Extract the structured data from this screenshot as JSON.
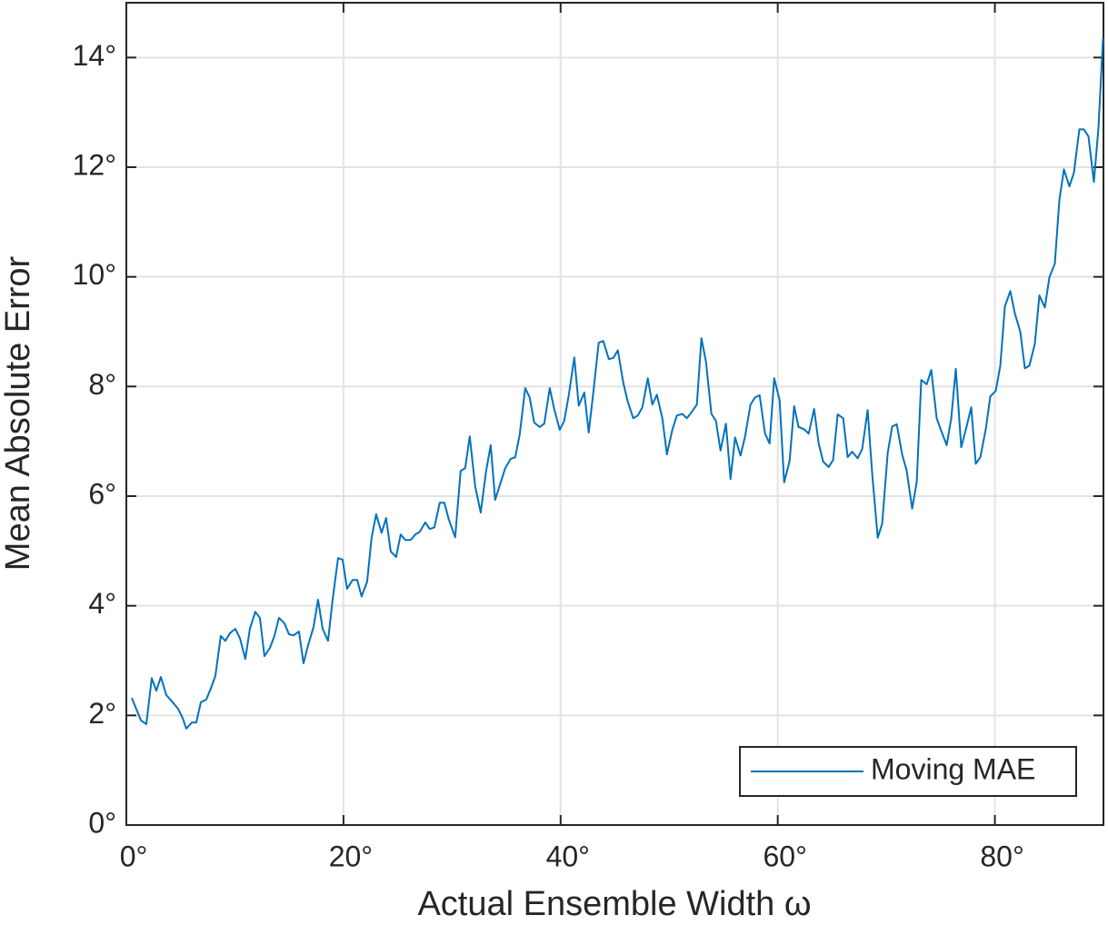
{
  "chart_data": {
    "type": "line",
    "xlabel": "Actual Ensemble Width ω",
    "ylabel": "Mean Absolute Error",
    "xlim": [
      0,
      90
    ],
    "ylim": [
      0,
      15
    ],
    "xticks": [
      {
        "value": 0,
        "label": "0°"
      },
      {
        "value": 20,
        "label": "20°"
      },
      {
        "value": 40,
        "label": "40°"
      },
      {
        "value": 60,
        "label": "60°"
      },
      {
        "value": 80,
        "label": "80°"
      }
    ],
    "yticks": [
      {
        "value": 0,
        "label": "0°"
      },
      {
        "value": 2,
        "label": "2°"
      },
      {
        "value": 4,
        "label": "4°"
      },
      {
        "value": 6,
        "label": "6°"
      },
      {
        "value": 8,
        "label": "8°"
      },
      {
        "value": 10,
        "label": "10°"
      },
      {
        "value": 12,
        "label": "12°"
      },
      {
        "value": 14,
        "label": "14°"
      }
    ],
    "grid": true,
    "legend": "southeast",
    "x": [
      0.5,
      1.34,
      1.84,
      2.34,
      2.76,
      3.18,
      3.68,
      4.27,
      4.77,
      5.19,
      5.52,
      6.03,
      6.44,
      6.86,
      7.36,
      7.78,
      8.2,
      8.7,
      9.12,
      9.54,
      10.04,
      10.46,
      10.96,
      11.38,
      11.88,
      12.3,
      12.72,
      13.22,
      13.64,
      14.06,
      14.56,
      14.98,
      15.4,
      15.9,
      16.32,
      16.74,
      17.24,
      17.66,
      18.08,
      18.58,
      19.0,
      19.5,
      19.92,
      20.33,
      20.84,
      21.26,
      21.67,
      22.18,
      22.59,
      23.01,
      23.51,
      23.93,
      24.35,
      24.85,
      25.27,
      25.69,
      26.19,
      26.61,
      27.03,
      27.53,
      27.95,
      28.37,
      28.87,
      29.29,
      29.71,
      30.29,
      30.79,
      31.21,
      31.63,
      32.13,
      32.64,
      33.14,
      33.56,
      33.97,
      34.48,
      34.9,
      35.4,
      35.82,
      36.23,
      36.74,
      37.15,
      37.57,
      38.08,
      38.49,
      39.0,
      39.41,
      39.92,
      40.33,
      40.75,
      41.26,
      41.67,
      42.18,
      42.59,
      43.01,
      43.51,
      43.93,
      44.44,
      44.85,
      45.27,
      45.77,
      46.19,
      46.69,
      47.11,
      47.53,
      48.03,
      48.45,
      48.87,
      49.37,
      49.79,
      50.29,
      50.71,
      51.21,
      51.63,
      52.13,
      52.55,
      52.97,
      53.39,
      53.89,
      54.31,
      54.73,
      55.23,
      55.65,
      56.07,
      56.57,
      56.99,
      57.49,
      57.91,
      58.33,
      58.83,
      59.25,
      59.67,
      60.17,
      60.59,
      61.09,
      61.51,
      61.92,
      62.43,
      62.85,
      63.35,
      63.77,
      64.18,
      64.69,
      65.1,
      65.52,
      66.03,
      66.44,
      66.86,
      67.36,
      67.78,
      68.28,
      68.7,
      69.21,
      69.62,
      70.13,
      70.54,
      70.96,
      71.46,
      71.88,
      72.38,
      72.8,
      73.22,
      73.72,
      74.14,
      74.64,
      75.06,
      75.56,
      75.98,
      76.4,
      76.9,
      77.32,
      77.82,
      78.24,
      78.66,
      79.16,
      79.58,
      80.08,
      80.5,
      80.92,
      81.42,
      81.84,
      82.34,
      82.76,
      83.18,
      83.68,
      84.1,
      84.6,
      85.02,
      85.52,
      85.94,
      86.36,
      86.86,
      87.28,
      87.78,
      88.2,
      88.62,
      89.12,
      89.54,
      89.96
    ],
    "series": [
      {
        "name": "Moving MAE",
        "color": "#0072bd",
        "values": [
          2.32,
          1.91,
          1.84,
          2.68,
          2.45,
          2.7,
          2.37,
          2.24,
          2.12,
          1.95,
          1.76,
          1.87,
          1.87,
          2.24,
          2.29,
          2.49,
          2.72,
          3.45,
          3.36,
          3.5,
          3.58,
          3.41,
          3.03,
          3.58,
          3.89,
          3.78,
          3.08,
          3.23,
          3.45,
          3.78,
          3.68,
          3.48,
          3.46,
          3.53,
          2.95,
          3.28,
          3.61,
          4.11,
          3.58,
          3.36,
          4.11,
          4.87,
          4.84,
          4.31,
          4.47,
          4.47,
          4.17,
          4.44,
          5.24,
          5.67,
          5.33,
          5.6,
          4.99,
          4.89,
          5.3,
          5.2,
          5.2,
          5.3,
          5.35,
          5.52,
          5.4,
          5.43,
          5.88,
          5.88,
          5.57,
          5.25,
          6.46,
          6.51,
          7.09,
          6.18,
          5.7,
          6.46,
          6.93,
          5.93,
          6.25,
          6.51,
          6.68,
          6.71,
          7.12,
          7.97,
          7.8,
          7.34,
          7.26,
          7.32,
          7.97,
          7.59,
          7.21,
          7.37,
          7.84,
          8.53,
          7.65,
          7.89,
          7.16,
          7.89,
          8.8,
          8.83,
          8.5,
          8.52,
          8.66,
          8.07,
          7.72,
          7.42,
          7.47,
          7.62,
          8.15,
          7.67,
          7.85,
          7.42,
          6.76,
          7.21,
          7.47,
          7.5,
          7.42,
          7.55,
          7.67,
          8.88,
          8.45,
          7.5,
          7.37,
          6.83,
          7.32,
          6.31,
          7.07,
          6.74,
          7.09,
          7.67,
          7.8,
          7.84,
          7.14,
          6.96,
          8.15,
          7.75,
          6.25,
          6.64,
          7.64,
          7.26,
          7.22,
          7.14,
          7.59,
          6.96,
          6.63,
          6.53,
          6.66,
          7.49,
          7.42,
          6.71,
          6.81,
          6.69,
          6.86,
          7.57,
          6.41,
          5.24,
          5.5,
          6.79,
          7.27,
          7.31,
          6.76,
          6.46,
          5.77,
          6.26,
          8.12,
          8.04,
          8.3,
          7.42,
          7.19,
          6.93,
          7.42,
          8.32,
          6.89,
          7.21,
          7.62,
          6.59,
          6.71,
          7.22,
          7.82,
          7.92,
          8.38,
          9.46,
          9.74,
          9.33,
          9.0,
          8.33,
          8.38,
          8.78,
          9.66,
          9.44,
          9.99,
          10.24,
          11.4,
          11.96,
          11.65,
          11.9,
          12.69,
          12.69,
          12.56,
          11.73,
          12.72,
          14.35
        ]
      }
    ]
  }
}
